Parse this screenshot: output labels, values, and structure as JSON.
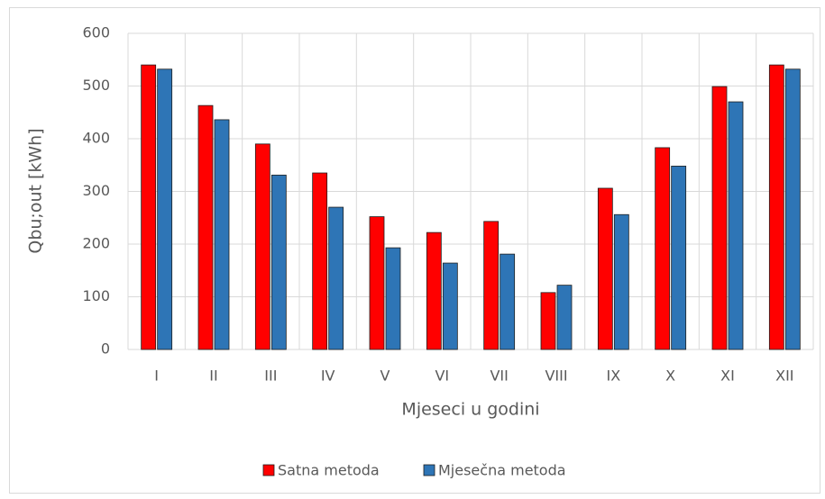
{
  "chart_data": {
    "type": "bar",
    "x_label": "Mjeseci u godini",
    "y_label": "Qbu;out [kWh]",
    "categories": [
      "I",
      "II",
      "III",
      "IV",
      "V",
      "VI",
      "VII",
      "VIII",
      "IX",
      "X",
      "XI",
      "XII"
    ],
    "series": [
      {
        "name": "Satna metoda",
        "color": "#ff0000",
        "values": [
          540,
          463,
          390,
          335,
          252,
          222,
          243,
          108,
          306,
          383,
          499,
          540
        ]
      },
      {
        "name": "Mjesečna metoda",
        "color": "#2e75b6",
        "values": [
          532,
          436,
          331,
          270,
          193,
          164,
          181,
          122,
          256,
          348,
          470,
          532
        ]
      }
    ],
    "ylim": [
      0,
      600
    ],
    "yticks": [
      0,
      100,
      200,
      300,
      400,
      500,
      600
    ],
    "grid": true,
    "legend": "bottom"
  }
}
